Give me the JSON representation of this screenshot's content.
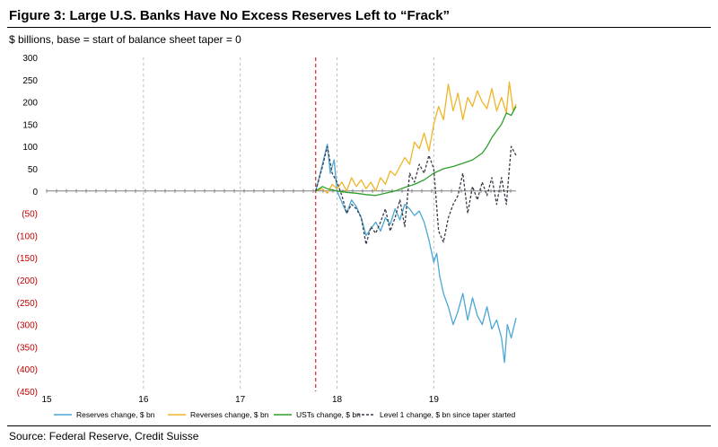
{
  "header": {
    "title": "Figure 3: Large U.S. Banks Have No Excess Reserves Left to “Frack”",
    "subtitle": "$ billions, base = start of balance sheet taper = 0"
  },
  "footer": {
    "source": "Source: Federal Reserve, Credit Suisse"
  },
  "chart_data": {
    "type": "line",
    "ylim": [
      -450,
      300
    ],
    "xlim": [
      15,
      19.85
    ],
    "yticks": [
      300,
      250,
      200,
      150,
      100,
      50,
      0,
      -50,
      -100,
      -150,
      -200,
      -250,
      -300,
      -350,
      -400,
      -450
    ],
    "ytick_labels": [
      "300",
      "250",
      "200",
      "150",
      "100",
      "50",
      "0",
      "(50)",
      "(100)",
      "(150)",
      "(200)",
      "(250)",
      "(300)",
      "(350)",
      "(400)",
      "(450)"
    ],
    "xticks": [
      15,
      16,
      17,
      18,
      19
    ],
    "xtick_labels": [
      "15",
      "16",
      "17",
      "18",
      "19"
    ],
    "taper_start": 17.78,
    "grid": "vertical dashed at year ticks",
    "legend": "bottom",
    "colors": {
      "negative_tick": "#c00000",
      "taper_line": "#c00000",
      "axis": "#7f7f7f",
      "grid": "#bfbfbf"
    },
    "series": [
      {
        "name": "Reserves change, $ bn",
        "color": "#4aa7d6",
        "dash": "solid",
        "x": [
          17.78,
          17.85,
          17.9,
          17.93,
          17.97,
          18.0,
          18.05,
          18.1,
          18.15,
          18.2,
          18.25,
          18.3,
          18.35,
          18.4,
          18.45,
          18.5,
          18.55,
          18.6,
          18.65,
          18.7,
          18.75,
          18.8,
          18.85,
          18.9,
          18.95,
          19.0,
          19.03,
          19.06,
          19.1,
          19.15,
          19.2,
          19.25,
          19.3,
          19.35,
          19.4,
          19.45,
          19.5,
          19.55,
          19.6,
          19.65,
          19.7,
          19.73,
          19.76,
          19.8,
          19.85
        ],
        "y": [
          0,
          60,
          105,
          40,
          70,
          0,
          -25,
          -50,
          -20,
          -35,
          -60,
          -100,
          -85,
          -70,
          -90,
          -60,
          -75,
          -40,
          -65,
          -30,
          -40,
          -55,
          -45,
          -70,
          -110,
          -160,
          -140,
          -190,
          -230,
          -260,
          -300,
          -270,
          -230,
          -290,
          -240,
          -280,
          -300,
          -260,
          -310,
          -290,
          -330,
          -385,
          -300,
          -330,
          -285
        ]
      },
      {
        "name": "Reverses change, $ bn",
        "color": "#f0b429",
        "dash": "solid",
        "x": [
          17.78,
          17.85,
          17.9,
          17.95,
          18.0,
          18.05,
          18.1,
          18.15,
          18.2,
          18.25,
          18.3,
          18.35,
          18.4,
          18.45,
          18.5,
          18.55,
          18.6,
          18.65,
          18.7,
          18.75,
          18.8,
          18.85,
          18.9,
          18.95,
          19.0,
          19.05,
          19.1,
          19.15,
          19.2,
          19.25,
          19.3,
          19.35,
          19.4,
          19.45,
          19.5,
          19.55,
          19.6,
          19.65,
          19.7,
          19.75,
          19.78,
          19.82,
          19.85
        ],
        "y": [
          0,
          5,
          -5,
          15,
          5,
          20,
          0,
          30,
          10,
          25,
          5,
          20,
          0,
          30,
          15,
          45,
          35,
          55,
          75,
          60,
          110,
          95,
          130,
          90,
          150,
          190,
          160,
          240,
          180,
          220,
          160,
          210,
          190,
          225,
          200,
          185,
          230,
          180,
          210,
          175,
          245,
          180,
          195
        ]
      },
      {
        "name": "USTs change, $ bn",
        "color": "#2ca02c",
        "dash": "solid",
        "x": [
          17.78,
          17.85,
          17.9,
          18.0,
          18.1,
          18.2,
          18.3,
          18.4,
          18.5,
          18.6,
          18.7,
          18.8,
          18.9,
          19.0,
          19.1,
          19.2,
          19.3,
          19.4,
          19.5,
          19.55,
          19.6,
          19.65,
          19.7,
          19.75,
          19.8,
          19.85
        ],
        "y": [
          0,
          10,
          5,
          0,
          -3,
          -5,
          -8,
          -10,
          -5,
          0,
          8,
          15,
          25,
          40,
          50,
          55,
          62,
          70,
          85,
          100,
          120,
          135,
          150,
          175,
          170,
          190
        ]
      },
      {
        "name": "Level 1 change, $ bn since taper started",
        "color": "#3a3a4a",
        "dash": "dashed",
        "x": [
          17.78,
          17.85,
          17.9,
          17.95,
          18.0,
          18.05,
          18.1,
          18.15,
          18.2,
          18.25,
          18.3,
          18.35,
          18.4,
          18.45,
          18.5,
          18.55,
          18.6,
          18.65,
          18.7,
          18.75,
          18.8,
          18.85,
          18.9,
          18.95,
          19.0,
          19.05,
          19.1,
          19.15,
          19.2,
          19.25,
          19.3,
          19.35,
          19.4,
          19.45,
          19.5,
          19.55,
          19.6,
          19.65,
          19.7,
          19.75,
          19.8,
          19.85
        ],
        "y": [
          0,
          55,
          100,
          40,
          20,
          -10,
          -50,
          -30,
          -40,
          -60,
          -120,
          -80,
          -95,
          -70,
          -40,
          -90,
          -60,
          -20,
          -80,
          40,
          20,
          60,
          40,
          80,
          50,
          -90,
          -115,
          -60,
          -30,
          -10,
          40,
          -50,
          10,
          -20,
          20,
          -10,
          30,
          -30,
          30,
          -30,
          100,
          80
        ]
      }
    ]
  }
}
